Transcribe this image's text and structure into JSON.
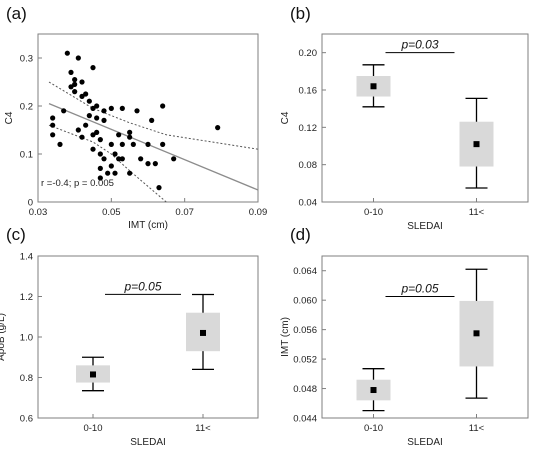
{
  "chart_data": [
    {
      "panel": "(a)",
      "type": "scatter",
      "xlabel": "IMT (cm)",
      "ylabel": "C4",
      "xlim": [
        0.03,
        0.09
      ],
      "ylim": [
        0,
        0.35
      ],
      "xticks": [
        "0.03",
        "0.05",
        "0.07",
        "0.09"
      ],
      "yticks": [
        "0",
        "0.1",
        "0.2",
        "0.3"
      ],
      "annotation": "r =-0.4; p = 0.005",
      "regression": {
        "x": [
          0.033,
          0.09
        ],
        "y": [
          0.205,
          0.025
        ]
      },
      "ci_upper": {
        "x": [
          0.033,
          0.045,
          0.055,
          0.065,
          0.09
        ],
        "y": [
          0.25,
          0.195,
          0.165,
          0.14,
          0.11
        ]
      },
      "ci_lower": {
        "x": [
          0.033,
          0.045,
          0.05,
          0.055,
          0.065
        ],
        "y": [
          0.16,
          0.125,
          0.1,
          0.065,
          0.0
        ]
      },
      "points": [
        [
          0.034,
          0.175
        ],
        [
          0.034,
          0.16
        ],
        [
          0.034,
          0.14
        ],
        [
          0.036,
          0.12
        ],
        [
          0.037,
          0.19
        ],
        [
          0.038,
          0.31
        ],
        [
          0.039,
          0.27
        ],
        [
          0.039,
          0.24
        ],
        [
          0.04,
          0.245
        ],
        [
          0.04,
          0.23
        ],
        [
          0.04,
          0.255
        ],
        [
          0.041,
          0.3
        ],
        [
          0.041,
          0.15
        ],
        [
          0.042,
          0.25
        ],
        [
          0.042,
          0.22
        ],
        [
          0.042,
          0.135
        ],
        [
          0.043,
          0.225
        ],
        [
          0.043,
          0.16
        ],
        [
          0.044,
          0.21
        ],
        [
          0.044,
          0.18
        ],
        [
          0.045,
          0.28
        ],
        [
          0.045,
          0.195
        ],
        [
          0.045,
          0.14
        ],
        [
          0.045,
          0.11
        ],
        [
          0.046,
          0.2
        ],
        [
          0.046,
          0.175
        ],
        [
          0.046,
          0.145
        ],
        [
          0.047,
          0.13
        ],
        [
          0.047,
          0.1
        ],
        [
          0.047,
          0.07
        ],
        [
          0.047,
          0.05
        ],
        [
          0.048,
          0.19
        ],
        [
          0.048,
          0.17
        ],
        [
          0.048,
          0.09
        ],
        [
          0.049,
          0.06
        ],
        [
          0.05,
          0.195
        ],
        [
          0.05,
          0.12
        ],
        [
          0.05,
          0.075
        ],
        [
          0.051,
          0.1
        ],
        [
          0.051,
          0.06
        ],
        [
          0.052,
          0.14
        ],
        [
          0.052,
          0.09
        ],
        [
          0.053,
          0.195
        ],
        [
          0.053,
          0.12
        ],
        [
          0.053,
          0.09
        ],
        [
          0.055,
          0.145
        ],
        [
          0.055,
          0.135
        ],
        [
          0.055,
          0.06
        ],
        [
          0.056,
          0.12
        ],
        [
          0.057,
          0.19
        ],
        [
          0.058,
          0.09
        ],
        [
          0.06,
          0.12
        ],
        [
          0.06,
          0.08
        ],
        [
          0.061,
          0.17
        ],
        [
          0.062,
          0.08
        ],
        [
          0.063,
          0.03
        ],
        [
          0.064,
          0.2
        ],
        [
          0.067,
          0.09
        ],
        [
          0.079,
          0.155
        ],
        [
          0.064,
          0.12
        ]
      ]
    },
    {
      "panel": "(b)",
      "type": "box",
      "xlabel": "SLEDAI",
      "ylabel": "C4",
      "ylim": [
        0.04,
        0.22
      ],
      "yticks": [
        "0.04",
        "0.08",
        "0.12",
        "0.16",
        "0.20"
      ],
      "categories": [
        "0-10",
        "11<"
      ],
      "boxes": [
        {
          "whisker_low": 0.142,
          "q1": 0.153,
          "mean": 0.164,
          "q3": 0.175,
          "whisker_high": 0.187
        },
        {
          "whisker_low": 0.055,
          "q1": 0.078,
          "mean": 0.102,
          "q3": 0.126,
          "whisker_high": 0.151
        }
      ],
      "significance": "p=0.03"
    },
    {
      "panel": "(c)",
      "type": "box",
      "xlabel": "SLEDAI",
      "ylabel": "ApoB (g/L)",
      "ylim": [
        0.6,
        1.4
      ],
      "yticks": [
        "0.6",
        "0.8",
        "1.0",
        "1.2",
        "1.4"
      ],
      "categories": [
        "0-10",
        "11<"
      ],
      "boxes": [
        {
          "whisker_low": 0.735,
          "q1": 0.775,
          "mean": 0.815,
          "q3": 0.86,
          "whisker_high": 0.9
        },
        {
          "whisker_low": 0.84,
          "q1": 0.93,
          "mean": 1.02,
          "q3": 1.12,
          "whisker_high": 1.21
        }
      ],
      "significance": "p=0.05"
    },
    {
      "panel": "(d)",
      "type": "box",
      "xlabel": "SLEDAI",
      "ylabel": "IMT (cm)",
      "ylim": [
        0.044,
        0.066
      ],
      "yticks": [
        "0.044",
        "0.048",
        "0.052",
        "0.056",
        "0.060",
        "0.064"
      ],
      "categories": [
        "0-10",
        "11<"
      ],
      "boxes": [
        {
          "whisker_low": 0.045,
          "q1": 0.0464,
          "mean": 0.0478,
          "q3": 0.0492,
          "whisker_high": 0.0507
        },
        {
          "whisker_low": 0.0467,
          "q1": 0.051,
          "mean": 0.0555,
          "q3": 0.0599,
          "whisker_high": 0.0642
        }
      ],
      "significance": "p=0.05"
    }
  ],
  "colors": {
    "box_fill": "#d9d9d9",
    "ink": "#000000",
    "frame": "#7f7f7f",
    "regression": "#8c8c8c"
  }
}
